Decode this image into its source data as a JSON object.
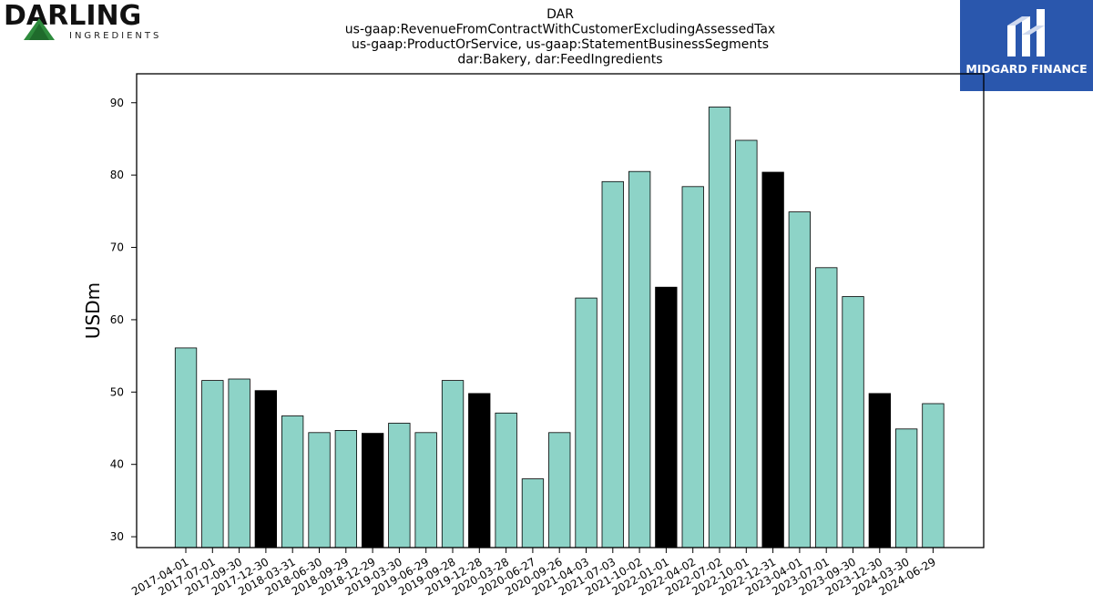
{
  "logos": {
    "left_brand": "DARLING",
    "left_sub": "INGREDIENTS",
    "right_name": "MIDGARD FINANCE"
  },
  "colors": {
    "bar_default": "#8dd3c7",
    "bar_highlight": "#000000",
    "midgard_blue": "#2a57ad",
    "darling_green": "#2e8b3d"
  },
  "chart_data": {
    "type": "bar",
    "title_lines": [
      "DAR",
      "us-gaap:RevenueFromContractWithCustomerExcludingAssessedTax",
      "us-gaap:ProductOrService, us-gaap:StatementBusinessSegments",
      "dar:Bakery, dar:FeedIngredients"
    ],
    "xlabel": "",
    "ylabel": "USDm",
    "ylim": [
      28.5,
      94
    ],
    "yticks": [
      30,
      40,
      50,
      60,
      70,
      80,
      90
    ],
    "grid": false,
    "categories": [
      "2017-04-01",
      "2017-07-01",
      "2017-09-30",
      "2017-12-30",
      "2018-03-31",
      "2018-06-30",
      "2018-09-29",
      "2018-12-29",
      "2019-03-30",
      "2019-06-29",
      "2019-09-28",
      "2019-12-28",
      "2020-03-28",
      "2020-06-27",
      "2020-09-26",
      "2021-04-03",
      "2021-07-03",
      "2021-10-02",
      "2022-01-01",
      "2022-04-02",
      "2022-07-02",
      "2022-10-01",
      "2022-12-31",
      "2023-04-01",
      "2023-07-01",
      "2023-09-30",
      "2023-12-30",
      "2024-03-30",
      "2024-06-29"
    ],
    "values": [
      56.1,
      51.6,
      51.8,
      50.2,
      46.7,
      44.4,
      44.7,
      44.3,
      45.7,
      44.4,
      51.6,
      49.8,
      47.1,
      38.0,
      44.4,
      63.0,
      79.1,
      80.5,
      64.5,
      78.4,
      89.4,
      84.8,
      80.4,
      74.9,
      67.2,
      63.2,
      49.8,
      44.9,
      48.4
    ],
    "highlight": [
      false,
      false,
      false,
      true,
      false,
      false,
      false,
      true,
      false,
      false,
      false,
      true,
      false,
      false,
      false,
      false,
      false,
      false,
      true,
      false,
      false,
      false,
      true,
      false,
      false,
      false,
      true,
      false,
      false
    ]
  }
}
